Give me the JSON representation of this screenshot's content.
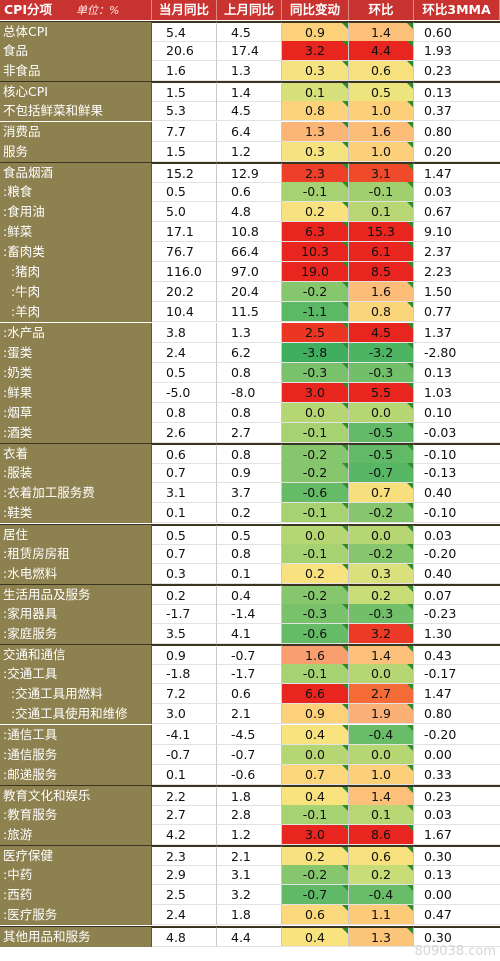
{
  "header": {
    "col0": "CPI分项",
    "unit": "单位：%",
    "col1": "当月同比",
    "col2": "上月同比",
    "col3": "同比变动",
    "col4": "环比",
    "col5": "环比3MMA"
  },
  "rows": [
    {
      "name": "总体CPI",
      "v1": "5.4",
      "v2": "4.5",
      "v3": "0.9",
      "v4": "1.4",
      "v5": "0.60",
      "c3": "#fdd17a",
      "c4": "#fcc07a",
      "g": true
    },
    {
      "name": "食品",
      "v1": "20.6",
      "v2": "17.4",
      "v3": "3.2",
      "v4": "4.4",
      "v5": "1.93",
      "c3": "#e8251e",
      "c4": "#e8251e"
    },
    {
      "name": "非食品",
      "v1": "1.6",
      "v2": "1.3",
      "v3": "0.3",
      "v4": "0.6",
      "v5": "0.23",
      "c3": "#f5e37f",
      "c4": "#f7e07e"
    },
    {
      "name": "核心CPI",
      "v1": "1.5",
      "v2": "1.4",
      "v3": "0.1",
      "v4": "0.5",
      "v5": "0.13",
      "c3": "#d7e17c",
      "c4": "#eee47e",
      "g": true
    },
    {
      "name": "不包括鲜菜和鲜果",
      "v1": "5.3",
      "v2": "4.5",
      "v3": "0.8",
      "v4": "1.0",
      "v5": "0.37",
      "c3": "#fcd27a",
      "c4": "#fcd07a"
    },
    {
      "name": "消费品",
      "v1": "7.7",
      "v2": "6.4",
      "v3": "1.3",
      "v4": "1.6",
      "v5": "0.80",
      "c3": "#fbb677",
      "c4": "#fbbd78"
    },
    {
      "name": "服务",
      "v1": "1.5",
      "v2": "1.2",
      "v3": "0.3",
      "v4": "1.0",
      "v5": "0.20",
      "c3": "#f5e37f",
      "c4": "#fcd07a"
    },
    {
      "name": "食品烟酒",
      "v1": "15.2",
      "v2": "12.9",
      "v3": "2.3",
      "v4": "3.1",
      "v5": "1.47",
      "c3": "#ee3f28",
      "c4": "#ef4a2a",
      "g": true
    },
    {
      "name": ":粮食",
      "v1": "0.5",
      "v2": "0.6",
      "v3": "-0.1",
      "v4": "-0.1",
      "v5": "0.03",
      "c3": "#a6d271",
      "c4": "#a0cf70"
    },
    {
      "name": ":食用油",
      "v1": "5.0",
      "v2": "4.8",
      "v3": "0.2",
      "v4": "0.1",
      "v5": "0.67",
      "c3": "#f7e27f",
      "c4": "#b8d774"
    },
    {
      "name": ":鲜菜",
      "v1": "17.1",
      "v2": "10.8",
      "v3": "6.3",
      "v4": "15.3",
      "v5": "9.10",
      "c3": "#e8251e",
      "c4": "#e8251e"
    },
    {
      "name": ":畜肉类",
      "v1": "76.7",
      "v2": "66.4",
      "v3": "10.3",
      "v4": "6.1",
      "v5": "2.37",
      "c3": "#e8251e",
      "c4": "#e8251e"
    },
    {
      "name": "  :猪肉",
      "v1": "116.0",
      "v2": "97.0",
      "v3": "19.0",
      "v4": "8.5",
      "v5": "2.23",
      "c3": "#e8251e",
      "c4": "#e8251e"
    },
    {
      "name": "  :牛肉",
      "v1": "20.2",
      "v2": "20.4",
      "v3": "-0.2",
      "v4": "1.6",
      "v5": "1.50",
      "c3": "#86c66c",
      "c4": "#fbbd78"
    },
    {
      "name": "  :羊肉",
      "v1": "10.4",
      "v2": "11.5",
      "v3": "-1.1",
      "v4": "0.8",
      "v5": "0.77",
      "c3": "#5bb865",
      "c4": "#fbd57b"
    },
    {
      "name": ":水产品",
      "v1": "3.8",
      "v2": "1.3",
      "v3": "2.5",
      "v4": "4.5",
      "v5": "1.37",
      "c3": "#ec3624",
      "c4": "#e8251e"
    },
    {
      "name": ":蛋类",
      "v1": "2.4",
      "v2": "6.2",
      "v3": "-3.8",
      "v4": "-3.2",
      "v5": "-2.80",
      "c3": "#3fae5f",
      "c4": "#4db462"
    },
    {
      "name": ":奶类",
      "v1": "0.5",
      "v2": "0.8",
      "v3": "-0.3",
      "v4": "-0.3",
      "v5": "0.13",
      "c3": "#7ac16b",
      "c4": "#72bf6a"
    },
    {
      "name": ":鲜果",
      "v1": "-5.0",
      "v2": "-8.0",
      "v3": "3.0",
      "v4": "5.5",
      "v5": "1.03",
      "c3": "#e8251e",
      "c4": "#e8251e"
    },
    {
      "name": ":烟草",
      "v1": "0.8",
      "v2": "0.8",
      "v3": "0.0",
      "v4": "0.0",
      "v5": "0.10",
      "c3": "#b6d674",
      "c4": "#b6d674"
    },
    {
      "name": ":酒类",
      "v1": "2.6",
      "v2": "2.7",
      "v3": "-0.1",
      "v4": "-0.5",
      "v5": "-0.03",
      "c3": "#a6d271",
      "c4": "#62ba66"
    },
    {
      "name": "衣着",
      "v1": "0.6",
      "v2": "0.8",
      "v3": "-0.2",
      "v4": "-0.5",
      "v5": "-0.10",
      "c3": "#86c66c",
      "c4": "#62ba66",
      "g": true
    },
    {
      "name": ":服装",
      "v1": "0.7",
      "v2": "0.9",
      "v3": "-0.2",
      "v4": "-0.7",
      "v5": "-0.13",
      "c3": "#86c66c",
      "c4": "#58b765"
    },
    {
      "name": ":衣着加工服务费",
      "v1": "3.1",
      "v2": "3.7",
      "v3": "-0.6",
      "v4": "0.7",
      "v5": "0.40",
      "c3": "#66bb67",
      "c4": "#f8df7e"
    },
    {
      "name": ":鞋类",
      "v1": "0.1",
      "v2": "0.2",
      "v3": "-0.1",
      "v4": "-0.2",
      "v5": "-0.10",
      "c3": "#a6d271",
      "c4": "#86c66c"
    },
    {
      "name": "居住",
      "v1": "0.5",
      "v2": "0.5",
      "v3": "0.0",
      "v4": "0.0",
      "v5": "0.03",
      "c3": "#b6d674",
      "c4": "#b6d674",
      "g": true
    },
    {
      "name": ":租赁房房租",
      "v1": "0.7",
      "v2": "0.8",
      "v3": "-0.1",
      "v4": "-0.2",
      "v5": "-0.20",
      "c3": "#a6d271",
      "c4": "#86c66c"
    },
    {
      "name": ":水电燃料",
      "v1": "0.3",
      "v2": "0.1",
      "v3": "0.2",
      "v4": "0.3",
      "v5": "0.40",
      "c3": "#f7e27f",
      "c4": "#dae17c"
    },
    {
      "name": "生活用品及服务",
      "v1": "0.2",
      "v2": "0.4",
      "v3": "-0.2",
      "v4": "0.2",
      "v5": "0.07",
      "c3": "#86c66c",
      "c4": "#c8dc77",
      "g": true
    },
    {
      "name": ":家用器具",
      "v1": "-1.7",
      "v2": "-1.4",
      "v3": "-0.3",
      "v4": "-0.3",
      "v5": "-0.23",
      "c3": "#7ac16b",
      "c4": "#72bf6a"
    },
    {
      "name": ":家庭服务",
      "v1": "3.5",
      "v2": "4.1",
      "v3": "-0.6",
      "v4": "3.2",
      "v5": "1.30",
      "c3": "#66bb67",
      "c4": "#ec3a26"
    },
    {
      "name": "交通和通信",
      "v1": "0.9",
      "v2": "-0.7",
      "v3": "1.6",
      "v4": "1.4",
      "v5": "0.43",
      "c3": "#f99e6f",
      "c4": "#fcc07a",
      "g": true
    },
    {
      "name": ":交通工具",
      "v1": "-1.8",
      "v2": "-1.7",
      "v3": "-0.1",
      "v4": "0.0",
      "v5": "-0.17",
      "c3": "#a6d271",
      "c4": "#b6d674"
    },
    {
      "name": "  :交通工具用燃料",
      "v1": "7.2",
      "v2": "0.6",
      "v3": "6.6",
      "v4": "2.7",
      "v5": "1.47",
      "c3": "#e8251e",
      "c4": "#f46b38"
    },
    {
      "name": "  :交通工具使用和维修",
      "v1": "3.0",
      "v2": "2.1",
      "v3": "0.9",
      "v4": "1.9",
      "v5": "0.80",
      "c3": "#fdd17a",
      "c4": "#fab076"
    },
    {
      "name": ":通信工具",
      "v1": "-4.1",
      "v2": "-4.5",
      "v3": "0.4",
      "v4": "-0.4",
      "v5": "-0.20",
      "c3": "#f8e37f",
      "c4": "#6abd68"
    },
    {
      "name": ":通信服务",
      "v1": "-0.7",
      "v2": "-0.7",
      "v3": "0.0",
      "v4": "0.0",
      "v5": "0.00",
      "c3": "#b6d674",
      "c4": "#b6d674"
    },
    {
      "name": ":邮递服务",
      "v1": "0.1",
      "v2": "-0.6",
      "v3": "0.7",
      "v4": "1.0",
      "v5": "0.33",
      "c3": "#fcd67b",
      "c4": "#fcd07a"
    },
    {
      "name": "教育文化和娱乐",
      "v1": "2.2",
      "v2": "1.8",
      "v3": "0.4",
      "v4": "1.4",
      "v5": "0.23",
      "c3": "#f8e37f",
      "c4": "#fcc07a",
      "g": true
    },
    {
      "name": ":教育服务",
      "v1": "2.7",
      "v2": "2.8",
      "v3": "-0.1",
      "v4": "0.1",
      "v5": "0.03",
      "c3": "#a6d271",
      "c4": "#b8d774"
    },
    {
      "name": ":旅游",
      "v1": "4.2",
      "v2": "1.2",
      "v3": "3.0",
      "v4": "8.6",
      "v5": "1.67",
      "c3": "#e8251e",
      "c4": "#e8251e"
    },
    {
      "name": "医疗保健",
      "v1": "2.3",
      "v2": "2.1",
      "v3": "0.2",
      "v4": "0.6",
      "v5": "0.30",
      "c3": "#f7e27f",
      "c4": "#f7e07e",
      "g": true
    },
    {
      "name": ":中药",
      "v1": "2.9",
      "v2": "3.1",
      "v3": "-0.2",
      "v4": "0.2",
      "v5": "0.13",
      "c3": "#86c66c",
      "c4": "#c8dc77"
    },
    {
      "name": ":西药",
      "v1": "2.5",
      "v2": "3.2",
      "v3": "-0.7",
      "v4": "-0.4",
      "v5": "0.00",
      "c3": "#5fb966",
      "c4": "#6abd68"
    },
    {
      "name": ":医疗服务",
      "v1": "2.4",
      "v2": "1.8",
      "v3": "0.6",
      "v4": "1.1",
      "v5": "0.47",
      "c3": "#fbd97c",
      "c4": "#fcca79"
    },
    {
      "name": "其他用品和服务",
      "v1": "4.8",
      "v2": "4.4",
      "v3": "0.4",
      "v4": "1.3",
      "v5": "0.30",
      "c3": "#f8e37f",
      "c4": "#fcc57a",
      "g": true
    }
  ],
  "watermark": "809038.com"
}
